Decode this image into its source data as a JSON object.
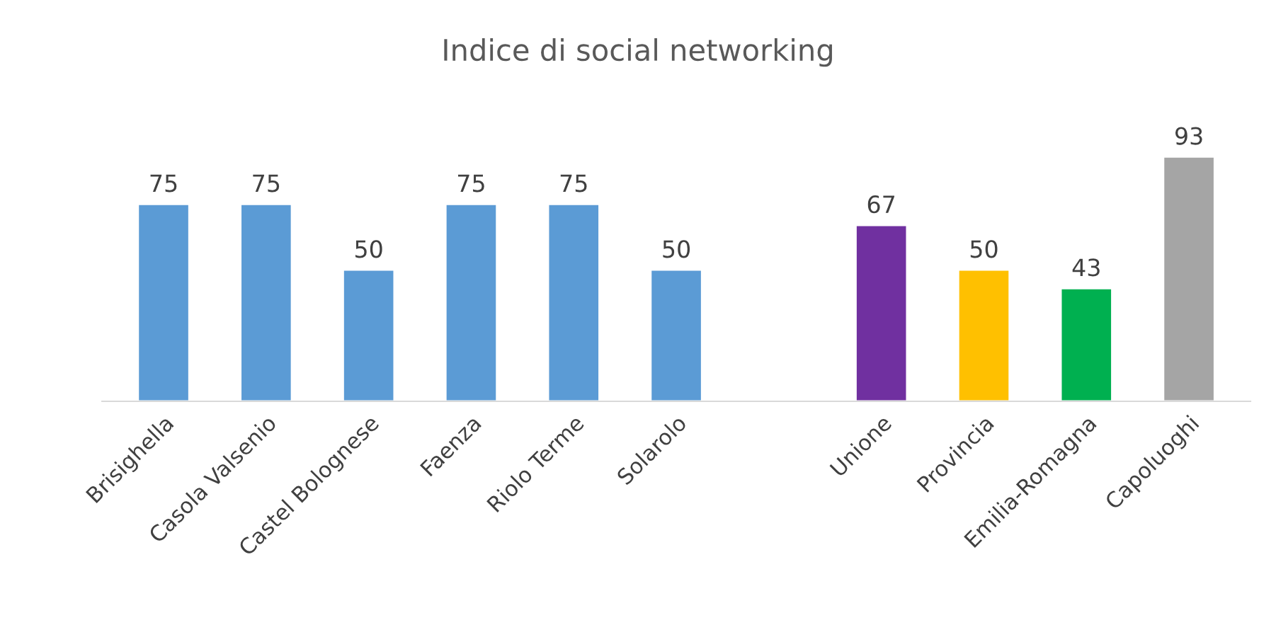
{
  "chart_data": {
    "type": "bar",
    "title": "Indice di social networking",
    "categories": [
      "Brisighella",
      "Casola Valsenio",
      "Castel Bolognese",
      "Faenza",
      "Riolo Terme",
      "Solarolo",
      null,
      "Unione",
      "Provincia",
      "Emilia-Romagna",
      "Capoluoghi"
    ],
    "values": [
      75,
      75,
      50,
      75,
      75,
      50,
      null,
      67,
      50,
      43,
      93
    ],
    "colors": [
      "#5b9bd5",
      "#5b9bd5",
      "#5b9bd5",
      "#5b9bd5",
      "#5b9bd5",
      "#5b9bd5",
      "#5b9bd5",
      "#7030a0",
      "#ffc000",
      "#00b050",
      "#a5a5a5"
    ],
    "data_labels": true,
    "grid": false,
    "legend": false
  }
}
